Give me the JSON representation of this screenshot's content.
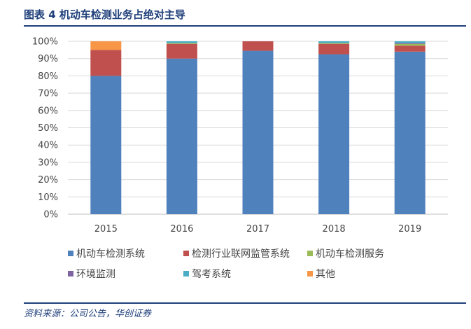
{
  "figure": {
    "title": "图表 4   机动车检测业务占绝对主导",
    "source": "资料来源：公司公告，华创证券"
  },
  "chart_data": {
    "type": "bar",
    "stacked": true,
    "categories": [
      "2015",
      "2016",
      "2017",
      "2018",
      "2019"
    ],
    "ylim": [
      0,
      100
    ],
    "yticks": [
      "0%",
      "10%",
      "20%",
      "30%",
      "40%",
      "50%",
      "60%",
      "70%",
      "80%",
      "90%",
      "100%"
    ],
    "grid": true,
    "legend_position": "bottom",
    "series": [
      {
        "name": "机动车检测系统",
        "color": "#4f81bd",
        "values": [
          80,
          90,
          94.5,
          92.5,
          94
        ]
      },
      {
        "name": "检测行业联网监管系统",
        "color": "#c0504d",
        "values": [
          15,
          8.5,
          5.5,
          6,
          3.5
        ]
      },
      {
        "name": "机动车检测服务",
        "color": "#9bbb59",
        "values": [
          0,
          0.5,
          0,
          0.5,
          1
        ]
      },
      {
        "name": "环境监测",
        "color": "#8064a2",
        "values": [
          0,
          0,
          0,
          0,
          0.5
        ]
      },
      {
        "name": "驾考系统",
        "color": "#4bacc6",
        "values": [
          0,
          1,
          0,
          1,
          1
        ]
      },
      {
        "name": "其他",
        "color": "#f79646",
        "values": [
          5,
          0,
          0,
          0,
          0
        ]
      }
    ]
  }
}
